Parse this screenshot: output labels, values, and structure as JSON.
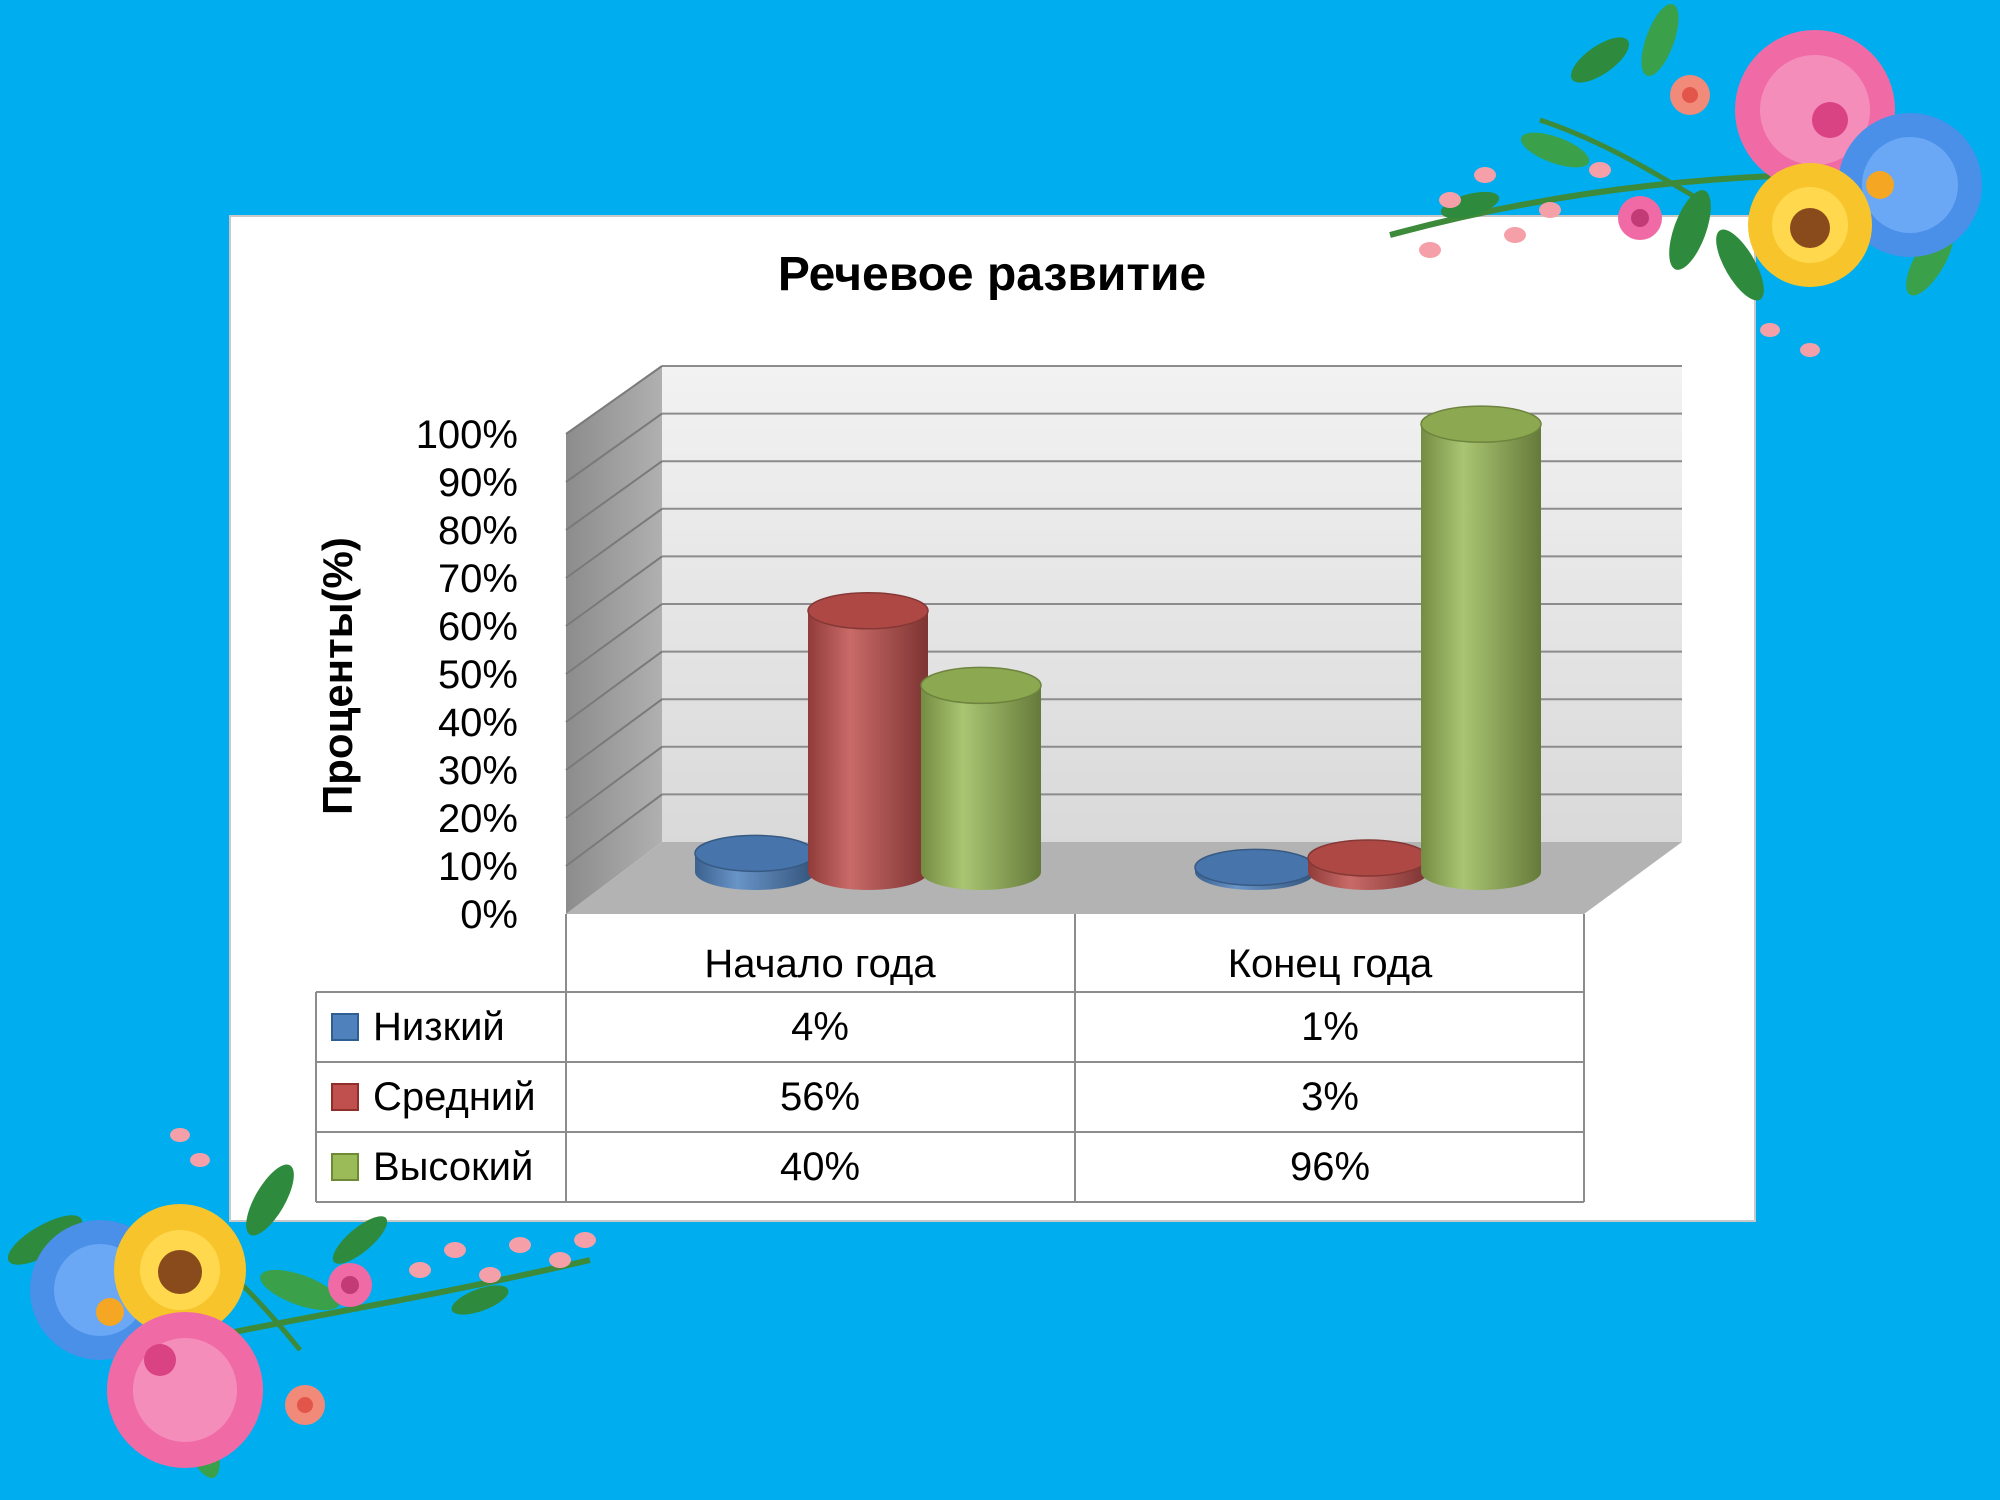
{
  "chart_data": {
    "type": "bar",
    "title": "Речевое развитие",
    "ylabel": "Проценты(%)",
    "xlabel": "",
    "categories": [
      "Начало года",
      "Конец года"
    ],
    "series": [
      {
        "name": "Низкий",
        "values": [
          4,
          1
        ],
        "labels": [
          "4%",
          "1%"
        ],
        "color": "#4f81bd"
      },
      {
        "name": "Средний",
        "values": [
          56,
          3
        ],
        "labels": [
          "56%",
          "3%"
        ],
        "color": "#c0504d"
      },
      {
        "name": "Высокий",
        "values": [
          40,
          96
        ],
        "labels": [
          "40%",
          "96%"
        ],
        "color": "#9bbb59"
      }
    ],
    "ylim": [
      0,
      100
    ],
    "yticks": [
      "0%",
      "10%",
      "20%",
      "30%",
      "40%",
      "50%",
      "60%",
      "70%",
      "80%",
      "90%",
      "100%"
    ],
    "grid": true,
    "style": "3d-cylinder",
    "data_table": true
  },
  "colors": {
    "background": "#00aeef",
    "panel": "#ffffff",
    "wall": "#e6e6e6",
    "side_wall": "#9a9a9a",
    "floor": "#b3b3b3"
  },
  "decorations": [
    "flower-bouquet-top-right",
    "flower-bouquet-bottom-left"
  ]
}
